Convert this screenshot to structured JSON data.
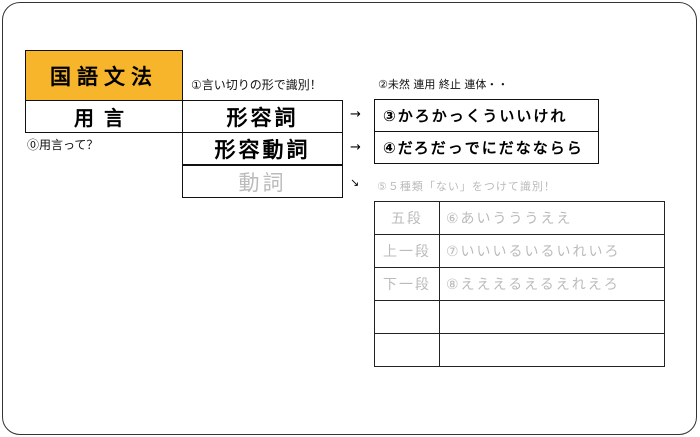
{
  "title": "国語文法",
  "yogen": "用言",
  "q0": "⓪用言って？",
  "note1": "①言い切りの形で識別！",
  "note2": "②未然 連用 終止 連体・・",
  "types": [
    {
      "label": "形容詞",
      "arrow": "→",
      "conj": "③かろかっくういいけれ"
    },
    {
      "label": "形容動詞",
      "arrow": "→",
      "conj": "④だろだっでにだなならら"
    },
    {
      "label": "動詞",
      "arrow": "↘",
      "conj": ""
    }
  ],
  "note5": "⑤５種類「ない」をつけて識別！",
  "verb_table": [
    {
      "kind": "五段",
      "conj": "⑥あいうううええ"
    },
    {
      "kind": "上一段",
      "conj": "⑦いいいるいるいれいろ"
    },
    {
      "kind": "下一段",
      "conj": "⑧えええるえるえれえろ"
    },
    {
      "kind": "",
      "conj": ""
    },
    {
      "kind": "",
      "conj": ""
    }
  ],
  "colors": {
    "title_bg": "#F7B52B",
    "faded_text": "#bbbbbb"
  }
}
